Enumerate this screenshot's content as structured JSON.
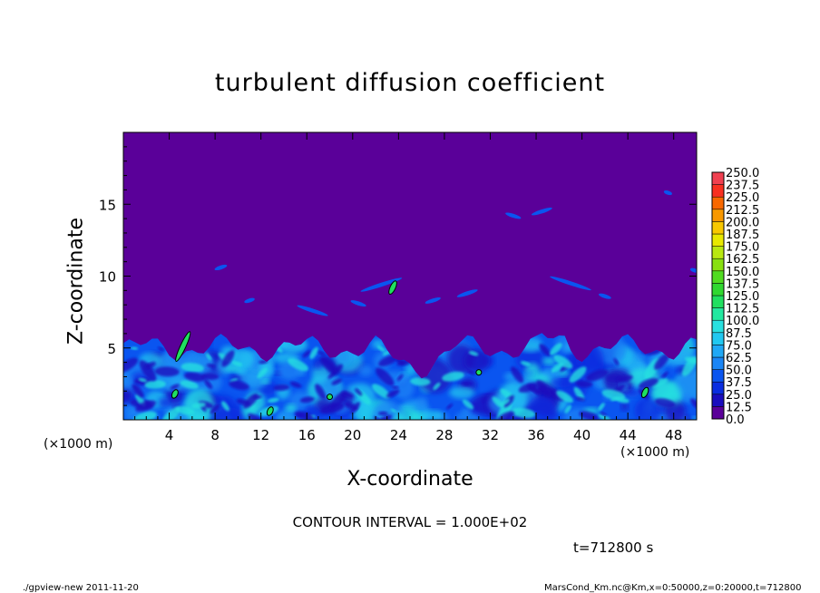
{
  "chart_data": {
    "type": "heatmap",
    "title": "turbulent diffusion coefficient",
    "xlabel": "X-coordinate",
    "ylabel": "Z-coordinate",
    "x_unit": "(×1000 m)",
    "y_unit": "(×1000 m)",
    "xlim": [
      0,
      50
    ],
    "ylim": [
      0,
      20
    ],
    "x_ticks": [
      4,
      8,
      12,
      16,
      20,
      24,
      28,
      32,
      36,
      40,
      44,
      48
    ],
    "y_ticks": [
      5,
      10,
      15
    ],
    "colorbar": {
      "levels": [
        "0.0",
        "12.5",
        "25.0",
        "37.5",
        "50.0",
        "62.5",
        "75.0",
        "87.5",
        "100.0",
        "112.5",
        "125.0",
        "137.5",
        "150.0",
        "162.5",
        "175.0",
        "187.5",
        "200.0",
        "212.5",
        "225.0",
        "237.5",
        "250.0"
      ],
      "colors": [
        "#5a0099",
        "#1a0dbe",
        "#0a2de0",
        "#0a55f0",
        "#1a85f5",
        "#20a8f5",
        "#22c8f0",
        "#28e0e0",
        "#22e8a0",
        "#20e060",
        "#30d830",
        "#50dc20",
        "#88e010",
        "#b8e810",
        "#e8e800",
        "#f8c800",
        "#f89800",
        "#f86800",
        "#f83020",
        "#f04050",
        "#f08080"
      ]
    },
    "contour_interval": "CONTOUR INTERVAL = 1.000E+02",
    "background_value": 0.0,
    "turbulent_layer_top_km_approx": 5,
    "bg_color": "#5a0099"
  },
  "footer": {
    "time_label": "t=712800 s",
    "left_note": "./gpview-new  2011-11-20",
    "right_note": "MarsCond_Km.nc@Km,x=0:50000,z=0:20000,t=712800"
  }
}
